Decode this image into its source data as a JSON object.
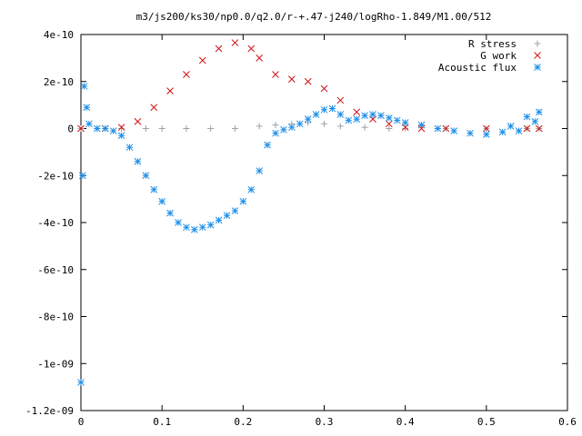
{
  "chart_data": {
    "type": "scatter",
    "title": "m3/js200/ks30/np0.0/q2.0/r-+.47-j240/logRho-1.849/M1.00/512",
    "xlabel": "",
    "ylabel": "",
    "xlim": [
      0,
      0.6
    ],
    "ylim": [
      -1.2e-09,
      4e-10
    ],
    "xticks": [
      0,
      0.1,
      0.2,
      0.3,
      0.4,
      0.5,
      0.6
    ],
    "xtick_labels": [
      "0",
      "0.1",
      "0.2",
      "0.3",
      "0.4",
      "0.5",
      "0.6"
    ],
    "yticks": [
      4e-10,
      2e-10,
      0,
      -2e-10,
      -4e-10,
      -6e-10,
      -8e-10,
      -1e-09,
      -1.2e-09
    ],
    "ytick_labels": [
      "4e-10",
      "2e-10",
      "0",
      "-2e-10",
      "-4e-10",
      "-6e-10",
      "-8e-10",
      "-1e-09",
      "-1.2e-09"
    ],
    "grid": false,
    "legend_position": "top-right",
    "series": [
      {
        "name": "R stress",
        "marker": "plus",
        "color": "#a0a0a0",
        "x": [
          0.0,
          0.02,
          0.05,
          0.08,
          0.1,
          0.13,
          0.16,
          0.19,
          0.22,
          0.24,
          0.26,
          0.28,
          0.3,
          0.32,
          0.35,
          0.38,
          0.4,
          0.45,
          0.5,
          0.55,
          0.565
        ],
        "y": [
          0.0,
          0.0,
          0.0,
          0.0,
          0.0,
          0.0,
          0.0,
          0.0,
          1e-11,
          1.5e-11,
          2e-11,
          2.5e-11,
          2e-11,
          1e-11,
          5e-12,
          0.0,
          0.0,
          0.0,
          0.0,
          0.0,
          0.0
        ]
      },
      {
        "name": "G work",
        "marker": "cross",
        "color": "#d01010",
        "x": [
          0.0,
          0.03,
          0.05,
          0.07,
          0.09,
          0.11,
          0.13,
          0.15,
          0.17,
          0.19,
          0.21,
          0.22,
          0.24,
          0.26,
          0.28,
          0.3,
          0.32,
          0.34,
          0.36,
          0.38,
          0.4,
          0.42,
          0.45,
          0.5,
          0.55,
          0.565
        ],
        "y": [
          0.0,
          0.0,
          5e-12,
          3e-11,
          9e-11,
          1.6e-10,
          2.3e-10,
          2.9e-10,
          3.4e-10,
          3.65e-10,
          3.4e-10,
          3e-10,
          2.3e-10,
          2.1e-10,
          2e-10,
          1.7e-10,
          1.2e-10,
          7e-11,
          4e-11,
          2e-11,
          5e-12,
          0.0,
          0.0,
          0.0,
          0.0,
          0.0
        ]
      },
      {
        "name": "Acoustic flux",
        "marker": "star",
        "color": "#1e8fe8",
        "x": [
          0.0,
          0.002,
          0.004,
          0.007,
          0.01,
          0.02,
          0.03,
          0.04,
          0.05,
          0.06,
          0.07,
          0.08,
          0.09,
          0.1,
          0.11,
          0.12,
          0.13,
          0.14,
          0.15,
          0.16,
          0.17,
          0.18,
          0.19,
          0.2,
          0.21,
          0.22,
          0.23,
          0.24,
          0.25,
          0.26,
          0.27,
          0.28,
          0.29,
          0.3,
          0.31,
          0.32,
          0.33,
          0.34,
          0.35,
          0.36,
          0.37,
          0.38,
          0.39,
          0.4,
          0.42,
          0.44,
          0.46,
          0.48,
          0.5,
          0.52,
          0.53,
          0.54,
          0.55,
          0.56,
          0.565
        ],
        "y": [
          -1.08e-09,
          -2e-10,
          1.8e-10,
          9e-11,
          2e-11,
          0.0,
          0.0,
          -1e-11,
          -3e-11,
          -8e-11,
          -1.4e-10,
          -2e-10,
          -2.6e-10,
          -3.1e-10,
          -3.6e-10,
          -4e-10,
          -4.2e-10,
          -4.3e-10,
          -4.2e-10,
          -4.1e-10,
          -3.9e-10,
          -3.7e-10,
          -3.5e-10,
          -3.1e-10,
          -2.6e-10,
          -1.8e-10,
          -7e-11,
          -2e-11,
          -5e-12,
          5e-12,
          2e-11,
          4e-11,
          6e-11,
          8e-11,
          8.5e-11,
          6e-11,
          3.5e-11,
          4e-11,
          5.5e-11,
          6e-11,
          5.5e-11,
          4.5e-11,
          3.5e-11,
          2.5e-11,
          1.5e-11,
          0.0,
          -1e-11,
          -2e-11,
          -2.5e-11,
          -1.5e-11,
          1e-11,
          -1e-11,
          5e-11,
          3e-11,
          7e-11
        ]
      }
    ]
  }
}
